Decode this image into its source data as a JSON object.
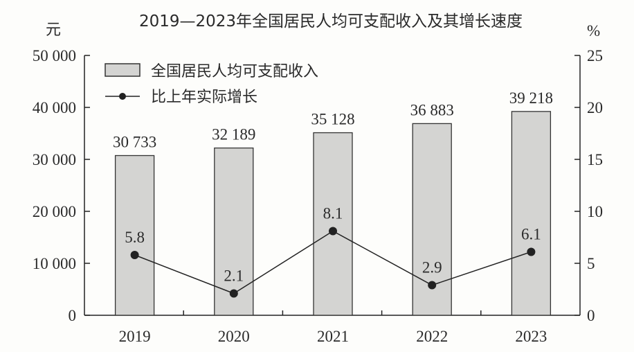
{
  "chart_data": {
    "type": "bar+line",
    "title": "2019—2023年全国居民人均可支配收入及其增长速度",
    "categories": [
      "2019",
      "2020",
      "2021",
      "2022",
      "2023"
    ],
    "series": [
      {
        "name": "全国居民人均可支配收入",
        "type": "bar",
        "axis": "left",
        "values": [
          30733,
          32189,
          35128,
          36883,
          39218
        ],
        "labels": [
          "30 733",
          "32 189",
          "35 128",
          "36 883",
          "39 218"
        ]
      },
      {
        "name": "比上年实际增长",
        "type": "line",
        "axis": "right",
        "values": [
          5.8,
          2.1,
          8.1,
          2.9,
          6.1
        ],
        "labels": [
          "5.8",
          "2.1",
          "8.1",
          "2.9",
          "6.1"
        ]
      }
    ],
    "ylabel_left": "元",
    "ylabel_right": "%",
    "ylim_left": [
      0,
      50000
    ],
    "ylim_right": [
      0,
      25
    ],
    "yticks_left": [
      "0",
      "10 000",
      "20 000",
      "30 000",
      "40 000",
      "50 000"
    ],
    "yticks_right": [
      "0",
      "5",
      "10",
      "15",
      "20",
      "25"
    ],
    "legend_position": "top-left",
    "colors": {
      "bar": "#d4d4d2",
      "bar_edge": "#333333",
      "line": "#222222"
    }
  }
}
